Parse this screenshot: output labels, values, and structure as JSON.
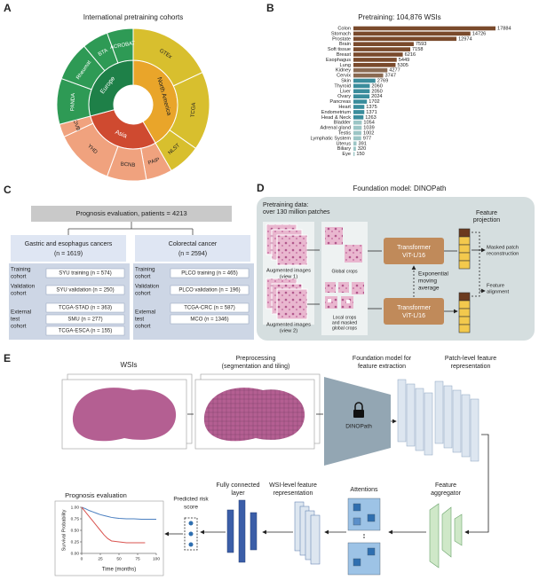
{
  "panel_labels": [
    "A",
    "B",
    "C",
    "D",
    "E"
  ],
  "chart_data": [
    {
      "type": "sunburst",
      "title": "International pretraining cohorts",
      "inner": {
        "categories": [
          "North America",
          "Asia",
          "Europe"
        ],
        "values": [
          150,
          105,
          105
        ],
        "colors": [
          "#e9a52a",
          "#cf4a30",
          "#1e8048"
        ]
      },
      "outer": {
        "categories": [
          "GTEx",
          "TCGA",
          "NLST",
          "PAIP",
          "BCNB",
          "YHD",
          "OVB",
          "PANDA",
          "Rheumat",
          "BTA",
          "ACROBAT"
        ],
        "values": [
          65,
          60,
          25,
          20,
          30,
          45,
          10,
          35,
          30,
          20,
          20
        ],
        "colors": [
          "#d8bf2e",
          "#d8bf2e",
          "#d8bf2e",
          "#f0a27e",
          "#f0a27e",
          "#f0a27e",
          "#f0a27e",
          "#2e9a55",
          "#2e9a55",
          "#2e9a55",
          "#2e9a55"
        ]
      }
    },
    {
      "type": "bar",
      "orientation": "horizontal",
      "title": "Pretraining: 104,876 WSIs",
      "categories": [
        "Colon",
        "Stomach",
        "Prostate",
        "Brain",
        "Soft tissue",
        "Breast",
        "Esophagus",
        "Lung",
        "Kidney",
        "Cervix",
        "Skin",
        "Thyroid",
        "Liver",
        "Ovary",
        "Pancreas",
        "Heart",
        "Endometrium",
        "Head & Neck",
        "Bladder",
        "Adrenal gland",
        "Testis",
        "Lymphatic System",
        "Uterus",
        "Biliary",
        "Eye"
      ],
      "values": [
        17884,
        14726,
        12974,
        7593,
        7158,
        6216,
        5449,
        5305,
        4277,
        3747,
        2769,
        2060,
        2050,
        2024,
        1702,
        1375,
        1371,
        1263,
        1054,
        1039,
        1002,
        977,
        391,
        320,
        150
      ],
      "colors": [
        "#7a4a2c",
        "#7a4a2c",
        "#7a4a2c",
        "#7a4a2c",
        "#7a4a2c",
        "#7a4a2c",
        "#7a4a2c",
        "#7a4a2c",
        "#8a6a52",
        "#8a6a52",
        "#3a8d9c",
        "#3a8d9c",
        "#3a8d9c",
        "#3a8d9c",
        "#3a8d9c",
        "#3a8d9c",
        "#3a8d9c",
        "#3a8d9c",
        "#9cc6c6",
        "#9cc6c6",
        "#9cc6c6",
        "#9cc6c6",
        "#9cc6c6",
        "#9cc6c6",
        "#9cc6c6"
      ]
    },
    {
      "type": "line",
      "title": "Prognosis evaluation",
      "x_label": "Time (months)",
      "y_label": "Survival Probability",
      "xlim": [
        0,
        100
      ],
      "xticks": [
        0,
        25,
        50,
        75,
        100
      ],
      "ylim": [
        0,
        1
      ],
      "yticks": [
        {
          "value": 0,
          "label": "0.00"
        },
        {
          "value": 0.25,
          "label": "0.25"
        },
        {
          "value": 0.5,
          "label": "0.50"
        },
        {
          "value": 0.75,
          "label": "0.75"
        },
        {
          "value": 1,
          "label": "1.00"
        }
      ],
      "series": [
        {
          "color": "#4a7fc0",
          "x": [
            0,
            5,
            10,
            15,
            20,
            25,
            30,
            35,
            40,
            45,
            50,
            60,
            70,
            80,
            90,
            100
          ],
          "values": [
            1,
            0.97,
            0.93,
            0.9,
            0.87,
            0.84,
            0.82,
            0.8,
            0.78,
            0.77,
            0.76,
            0.75,
            0.75,
            0.74,
            0.74,
            0.74
          ]
        },
        {
          "color": "#d9534f",
          "x": [
            0,
            5,
            10,
            15,
            20,
            25,
            30,
            35,
            40,
            50,
            60,
            70,
            80,
            85
          ],
          "values": [
            1,
            0.9,
            0.8,
            0.7,
            0.6,
            0.5,
            0.4,
            0.32,
            0.27,
            0.25,
            0.23,
            0.23,
            0.23,
            0.23
          ]
        }
      ]
    }
  ],
  "prognosis": {
    "title": "Prognosis evaluation, patients = 4213",
    "groups": [
      {
        "title": "Gastric and esophagus cancers",
        "n": "(n = 1619)",
        "cohorts": [
          {
            "label": [
              "Training",
              "cohort"
            ],
            "items": [
              "SYU training (n = 574)"
            ]
          },
          {
            "label": [
              "Validation",
              "cohort"
            ],
            "items": [
              "SYU validation (n = 250)"
            ]
          },
          {
            "label": [
              "External",
              "test",
              "cohort"
            ],
            "items": [
              "TCGA-STAD (n = 363)",
              "SMU (n = 277)",
              "TCGA-ESCA (n = 155)"
            ]
          }
        ]
      },
      {
        "title": "Colorectal cancer",
        "n": "(n = 2594)",
        "cohorts": [
          {
            "label": [
              "Training",
              "cohort"
            ],
            "items": [
              "PLCO training (n = 465)"
            ]
          },
          {
            "label": [
              "Validation",
              "cohort"
            ],
            "items": [
              "PLCO validation (n = 196)"
            ]
          },
          {
            "label": [
              "External",
              "test",
              "cohort"
            ],
            "items": [
              "TCGA-CRC (n = 587)",
              "MCO (n = 1346)"
            ]
          }
        ]
      }
    ]
  },
  "dinopath": {
    "title": "Foundation model: DINOPath",
    "data_title": [
      "Pretraining data:",
      "over 130 million patches"
    ],
    "view1": [
      "Augmented images",
      "(view 1)"
    ],
    "view2": [
      "Augmented images",
      "(view 2)"
    ],
    "global": "Global crops",
    "local": [
      "Local crops",
      "and masked",
      "global crops"
    ],
    "transformer": [
      "Transformer",
      "ViT-L/16"
    ],
    "ema": [
      "Exponential",
      "moving",
      "average"
    ],
    "projection": [
      "Feature",
      "projection"
    ],
    "masked": [
      "Masked patch",
      "reconstruction"
    ],
    "alignment": [
      "Feature",
      "alignment"
    ]
  },
  "pipeline": {
    "wsis": "WSIs",
    "preprocessing": [
      "Preprocessing",
      "(segmentation and tiling)"
    ],
    "foundation": [
      "Foundation model for",
      "feature extraction"
    ],
    "model": "DINOPath",
    "patch": [
      "Patch-level feature",
      "representation"
    ],
    "aggregator": [
      "Feature",
      "aggregator"
    ],
    "attentions": "Attentions",
    "wsi_feature": [
      "WSI-level feature",
      "representation"
    ],
    "fc": [
      "Fully connected",
      "layer"
    ],
    "risk": [
      "Predicted risk",
      "score"
    ]
  }
}
